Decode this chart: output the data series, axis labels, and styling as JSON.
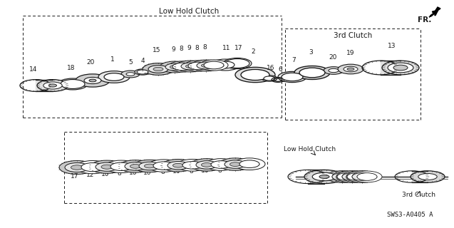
{
  "bg_color": "#ffffff",
  "line_color": "#1a1a1a",
  "title_lhc": "Low Hold Clutch",
  "title_3rd": "3rd Clutch",
  "label_low_hold": "Low Hold Clutch",
  "label_3rd": "3rd Clutch",
  "diagram_code": "SWS3-A0405 A",
  "fr_label": "FR.",
  "fig_width": 6.37,
  "fig_height": 3.2,
  "dpi": 100,
  "iso_yscale": 0.38
}
